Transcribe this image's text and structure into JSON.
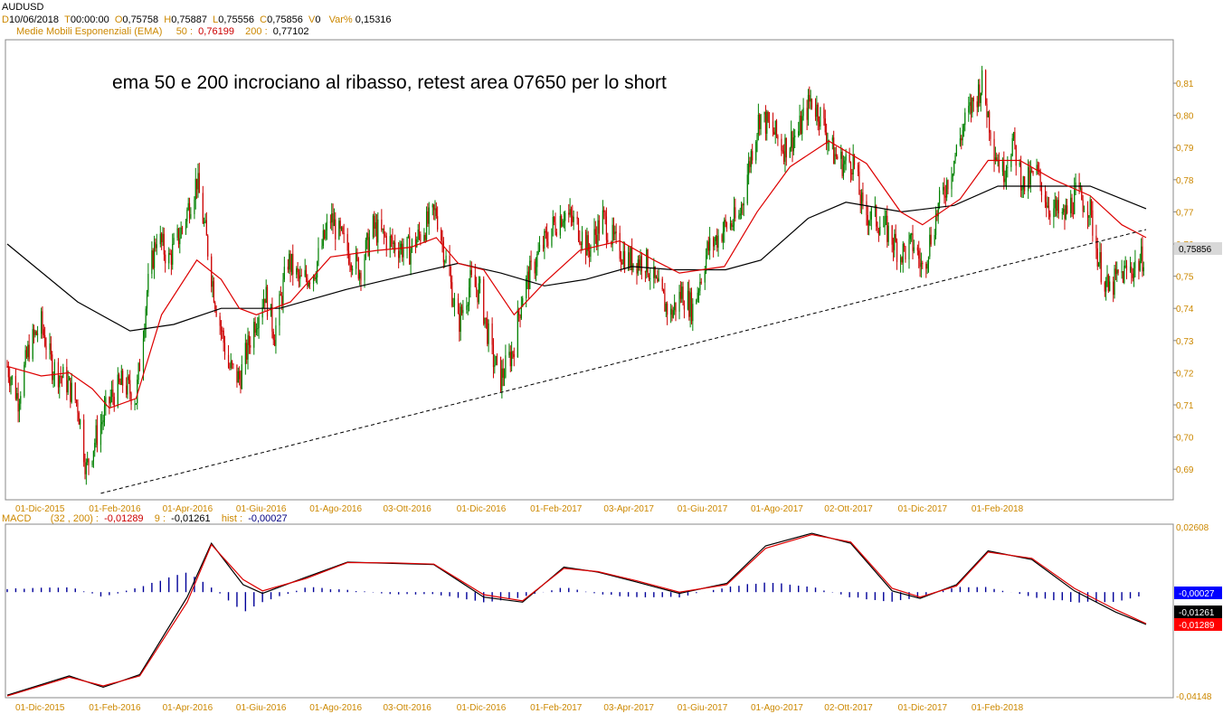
{
  "header": {
    "symbol": "AUDUSD",
    "d_key": "D",
    "date": "10/06/2018",
    "t_key": "T",
    "time": "00:00:00",
    "o_key": "O",
    "open": "0,75758",
    "h_key": "H",
    "high": "0,75887",
    "l_key": "L",
    "low": "0,75556",
    "c_key": "C",
    "close": "0,75856",
    "v_key": "V",
    "volume": "0",
    "var_key": "Var%",
    "var": "0,15316"
  },
  "ema_legend": {
    "name": "Medie Mobili Esponenziali (EMA)",
    "p50_key": "50 :",
    "p50": "0,76199",
    "p200_key": "200 :",
    "p200": "0,77102"
  },
  "macd_legend": {
    "name": "MACD",
    "params": "(32 , 200) :",
    "macd": "-0,01289",
    "sig_key": "9 :",
    "signal": "-0,01261",
    "hist_key": "hist :",
    "hist": "-0,00027"
  },
  "annotation": "ema 50 e 200 incrociano al ribasso, retest area 07650 per lo short",
  "colors": {
    "bull": "#008000",
    "bear": "#cc0000",
    "ema50": "#dd0000",
    "ema200": "#000000",
    "axis_label": "#cc8800",
    "hist": "#000099",
    "macd_line": "#000000",
    "signal_line": "#dd0000"
  },
  "chart_data": [
    {
      "type": "candlestick",
      "title": "AUDUSD",
      "x_tick_labels": [
        "01-Dic-2015",
        "01-Feb-2016",
        "01-Apr-2016",
        "01-Giu-2016",
        "01-Ago-2016",
        "03-Ott-2016",
        "01-Dic-2016",
        "01-Feb-2017",
        "03-Apr-2017",
        "01-Giu-2017",
        "01-Ago-2017",
        "02-Ott-2017",
        "01-Dic-2017",
        "01-Feb-2018"
      ],
      "y_tick_labels": [
        "0,81",
        "0,80",
        "0,79",
        "0,78",
        "0,77",
        "0,76",
        "0,75",
        "0,74",
        "0,73",
        "0,72",
        "0,71",
        "0,70",
        "0,69"
      ],
      "ylim": [
        0.6805,
        0.8235
      ],
      "last_price_label": "0,75856",
      "price_path": [
        [
          "2015-11-16",
          0.722
        ],
        [
          "2015-11-25",
          0.712
        ],
        [
          "2015-12-04",
          0.728
        ],
        [
          "2015-12-14",
          0.735
        ],
        [
          "2015-12-23",
          0.722
        ],
        [
          "2016-01-04",
          0.717
        ],
        [
          "2016-01-13",
          0.71
        ],
        [
          "2016-01-20",
          0.69
        ],
        [
          "2016-01-28",
          0.7
        ],
        [
          "2016-02-09",
          0.712
        ],
        [
          "2016-02-19",
          0.717
        ],
        [
          "2016-03-01",
          0.712
        ],
        [
          "2016-03-10",
          0.745
        ],
        [
          "2016-03-18",
          0.763
        ],
        [
          "2016-03-28",
          0.755
        ],
        [
          "2016-04-08",
          0.765
        ],
        [
          "2016-04-20",
          0.78
        ],
        [
          "2016-04-28",
          0.761
        ],
        [
          "2016-05-05",
          0.743
        ],
        [
          "2016-05-16",
          0.722
        ],
        [
          "2016-05-25",
          0.718
        ],
        [
          "2016-06-06",
          0.735
        ],
        [
          "2016-06-15",
          0.745
        ],
        [
          "2016-06-23",
          0.732
        ],
        [
          "2016-07-04",
          0.755
        ],
        [
          "2016-07-14",
          0.748
        ],
        [
          "2016-07-26",
          0.752
        ],
        [
          "2016-08-08",
          0.768
        ],
        [
          "2016-08-19",
          0.76
        ],
        [
          "2016-09-01",
          0.752
        ],
        [
          "2016-09-12",
          0.765
        ],
        [
          "2016-09-28",
          0.76
        ],
        [
          "2016-10-12",
          0.758
        ],
        [
          "2016-10-24",
          0.765
        ],
        [
          "2016-11-03",
          0.77
        ],
        [
          "2016-11-11",
          0.755
        ],
        [
          "2016-11-21",
          0.735
        ],
        [
          "2016-12-01",
          0.748
        ],
        [
          "2016-12-09",
          0.745
        ],
        [
          "2016-12-19",
          0.725
        ],
        [
          "2016-12-26",
          0.718
        ],
        [
          "2017-01-05",
          0.727
        ],
        [
          "2017-01-13",
          0.745
        ],
        [
          "2017-01-24",
          0.755
        ],
        [
          "2017-02-06",
          0.765
        ],
        [
          "2017-02-16",
          0.77
        ],
        [
          "2017-02-28",
          0.765
        ],
        [
          "2017-03-08",
          0.758
        ],
        [
          "2017-03-20",
          0.768
        ],
        [
          "2017-03-30",
          0.76
        ],
        [
          "2017-04-10",
          0.755
        ],
        [
          "2017-04-24",
          0.755
        ],
        [
          "2017-05-05",
          0.745
        ],
        [
          "2017-05-15",
          0.738
        ],
        [
          "2017-05-24",
          0.745
        ],
        [
          "2017-06-02",
          0.74
        ],
        [
          "2017-06-14",
          0.758
        ],
        [
          "2017-06-28",
          0.765
        ],
        [
          "2017-07-10",
          0.768
        ],
        [
          "2017-07-20",
          0.788
        ],
        [
          "2017-07-27",
          0.8
        ],
        [
          "2017-08-07",
          0.795
        ],
        [
          "2017-08-16",
          0.79
        ],
        [
          "2017-08-28",
          0.795
        ],
        [
          "2017-09-07",
          0.805
        ],
        [
          "2017-09-15",
          0.8
        ],
        [
          "2017-09-26",
          0.788
        ],
        [
          "2017-10-04",
          0.785
        ],
        [
          "2017-10-12",
          0.786
        ],
        [
          "2017-10-20",
          0.77
        ],
        [
          "2017-10-30",
          0.768
        ],
        [
          "2017-11-09",
          0.764
        ],
        [
          "2017-11-20",
          0.757
        ],
        [
          "2017-12-01",
          0.76
        ],
        [
          "2017-12-08",
          0.752
        ],
        [
          "2017-12-20",
          0.77
        ],
        [
          "2018-01-02",
          0.785
        ],
        [
          "2018-01-12",
          0.798
        ],
        [
          "2018-01-26",
          0.81
        ],
        [
          "2018-02-05",
          0.79
        ],
        [
          "2018-02-12",
          0.782
        ],
        [
          "2018-02-20",
          0.792
        ],
        [
          "2018-03-01",
          0.778
        ],
        [
          "2018-03-12",
          0.782
        ],
        [
          "2018-03-22",
          0.772
        ],
        [
          "2018-04-03",
          0.768
        ],
        [
          "2018-04-13",
          0.775
        ],
        [
          "2018-04-24",
          0.772
        ],
        [
          "2018-05-02",
          0.755
        ],
        [
          "2018-05-10",
          0.745
        ],
        [
          "2018-05-18",
          0.75
        ],
        [
          "2018-05-28",
          0.752
        ],
        [
          "2018-06-06",
          0.755
        ],
        [
          "2018-06-10",
          0.7586
        ]
      ],
      "ema50": [
        [
          "2015-11-16",
          0.722
        ],
        [
          "2015-12-14",
          0.719
        ],
        [
          "2016-01-06",
          0.72
        ],
        [
          "2016-01-25",
          0.715
        ],
        [
          "2016-02-08",
          0.709
        ],
        [
          "2016-03-01",
          0.712
        ],
        [
          "2016-03-22",
          0.738
        ],
        [
          "2016-04-20",
          0.755
        ],
        [
          "2016-05-10",
          0.749
        ],
        [
          "2016-05-25",
          0.74
        ],
        [
          "2016-06-08",
          0.738
        ],
        [
          "2016-07-06",
          0.742
        ],
        [
          "2016-08-08",
          0.756
        ],
        [
          "2016-09-15",
          0.758
        ],
        [
          "2016-10-13",
          0.759
        ],
        [
          "2016-11-03",
          0.762
        ],
        [
          "2016-11-21",
          0.754
        ],
        [
          "2016-12-12",
          0.752
        ],
        [
          "2017-01-06",
          0.738
        ],
        [
          "2017-01-31",
          0.748
        ],
        [
          "2017-03-01",
          0.758
        ],
        [
          "2017-04-03",
          0.761
        ],
        [
          "2017-05-01",
          0.755
        ],
        [
          "2017-05-22",
          0.751
        ],
        [
          "2017-06-28",
          0.753
        ],
        [
          "2017-07-25",
          0.77
        ],
        [
          "2017-08-21",
          0.784
        ],
        [
          "2017-09-22",
          0.792
        ],
        [
          "2017-10-23",
          0.785
        ],
        [
          "2017-11-20",
          0.77
        ],
        [
          "2017-12-08",
          0.766
        ],
        [
          "2018-01-08",
          0.774
        ],
        [
          "2018-01-31",
          0.786
        ],
        [
          "2018-02-26",
          0.786
        ],
        [
          "2018-03-26",
          0.78
        ],
        [
          "2018-04-25",
          0.775
        ],
        [
          "2018-05-21",
          0.766
        ],
        [
          "2018-06-10",
          0.762
        ]
      ],
      "ema200": [
        [
          "2015-11-16",
          0.76
        ],
        [
          "2016-01-13",
          0.742
        ],
        [
          "2016-02-25",
          0.733
        ],
        [
          "2016-04-01",
          0.735
        ],
        [
          "2016-05-10",
          0.74
        ],
        [
          "2016-06-27",
          0.74
        ],
        [
          "2016-08-22",
          0.746
        ],
        [
          "2016-10-06",
          0.75
        ],
        [
          "2016-11-21",
          0.754
        ],
        [
          "2016-12-26",
          0.751
        ],
        [
          "2017-01-31",
          0.747
        ],
        [
          "2017-03-06",
          0.749
        ],
        [
          "2017-04-13",
          0.753
        ],
        [
          "2017-05-17",
          0.752
        ],
        [
          "2017-06-29",
          0.752
        ],
        [
          "2017-07-28",
          0.755
        ],
        [
          "2017-09-05",
          0.768
        ],
        [
          "2017-10-06",
          0.773
        ],
        [
          "2017-11-21",
          0.77
        ],
        [
          "2018-01-03",
          0.772
        ],
        [
          "2018-02-08",
          0.778
        ],
        [
          "2018-03-12",
          0.778
        ],
        [
          "2018-04-25",
          0.778
        ],
        [
          "2018-06-10",
          0.771
        ]
      ],
      "trendline": {
        "style": "dashed",
        "from": [
          "2016-02-01",
          0.6825
        ],
        "to": [
          "2018-06-10",
          0.7645
        ]
      }
    },
    {
      "type": "line",
      "title": "MACD",
      "x_tick_labels": [
        "01-Dic-2015",
        "01-Feb-2016",
        "01-Apr-2016",
        "01-Giu-2016",
        "01-Ago-2016",
        "03-Ott-2016",
        "01-Dic-2016",
        "01-Feb-2017",
        "03-Apr-2017",
        "01-Giu-2017",
        "01-Ago-2017",
        "02-Ott-2017",
        "01-Dic-2017",
        "01-Feb-2018"
      ],
      "y_tick_labels": [
        "0,02608",
        "-0,04148"
      ],
      "ylim": [
        -0.04148,
        0.02608
      ],
      "value_labels": [
        "-0,00027",
        "-0,01261",
        "-0,01289"
      ],
      "macd": [
        [
          "2015-11-16",
          -0.0412
        ],
        [
          "2016-01-06",
          -0.0335
        ],
        [
          "2016-02-03",
          -0.038
        ],
        [
          "2016-03-04",
          -0.033
        ],
        [
          "2016-04-12",
          -0.002
        ],
        [
          "2016-05-02",
          0.0195
        ],
        [
          "2016-05-28",
          0.003
        ],
        [
          "2016-06-13",
          -0.0005
        ],
        [
          "2016-07-19",
          0.006
        ],
        [
          "2016-08-22",
          0.012
        ],
        [
          "2016-09-28",
          0.0115
        ],
        [
          "2016-11-01",
          0.011
        ],
        [
          "2016-12-12",
          -0.002
        ],
        [
          "2017-01-13",
          -0.004
        ],
        [
          "2017-02-16",
          0.01
        ],
        [
          "2017-03-16",
          0.008
        ],
        [
          "2017-04-17",
          0.004
        ],
        [
          "2017-05-22",
          -0.0005
        ],
        [
          "2017-06-30",
          0.0035
        ],
        [
          "2017-08-01",
          0.0185
        ],
        [
          "2017-09-08",
          0.0235
        ],
        [
          "2017-10-10",
          0.0195
        ],
        [
          "2017-11-13",
          0.0005
        ],
        [
          "2017-12-06",
          -0.0025
        ],
        [
          "2018-01-05",
          0.003
        ],
        [
          "2018-01-31",
          0.0165
        ],
        [
          "2018-03-08",
          0.013
        ],
        [
          "2018-04-12",
          0.0005
        ],
        [
          "2018-05-16",
          -0.008
        ],
        [
          "2018-06-10",
          -0.01289
        ]
      ],
      "signal": [
        [
          "2015-11-16",
          -0.0415
        ],
        [
          "2016-01-06",
          -0.034
        ],
        [
          "2016-02-03",
          -0.0375
        ],
        [
          "2016-03-04",
          -0.0335
        ],
        [
          "2016-04-12",
          -0.004
        ],
        [
          "2016-05-02",
          0.019
        ],
        [
          "2016-05-28",
          0.005
        ],
        [
          "2016-06-13",
          0.0005
        ],
        [
          "2016-07-19",
          0.0055
        ],
        [
          "2016-08-22",
          0.0118
        ],
        [
          "2016-09-28",
          0.0117
        ],
        [
          "2016-11-01",
          0.0112
        ],
        [
          "2016-12-12",
          -0.001
        ],
        [
          "2017-01-13",
          -0.0035
        ],
        [
          "2017-02-16",
          0.0095
        ],
        [
          "2017-03-16",
          0.0082
        ],
        [
          "2017-04-17",
          0.0045
        ],
        [
          "2017-05-22",
          0.0
        ],
        [
          "2017-06-30",
          0.003
        ],
        [
          "2017-08-01",
          0.0175
        ],
        [
          "2017-09-08",
          0.023
        ],
        [
          "2017-10-10",
          0.02
        ],
        [
          "2017-11-13",
          0.0015
        ],
        [
          "2017-12-06",
          -0.002
        ],
        [
          "2018-01-05",
          0.0025
        ],
        [
          "2018-01-31",
          0.016
        ],
        [
          "2018-03-08",
          0.0135
        ],
        [
          "2018-04-12",
          0.0015
        ],
        [
          "2018-05-16",
          -0.007
        ],
        [
          "2018-06-10",
          -0.01261
        ]
      ]
    }
  ]
}
